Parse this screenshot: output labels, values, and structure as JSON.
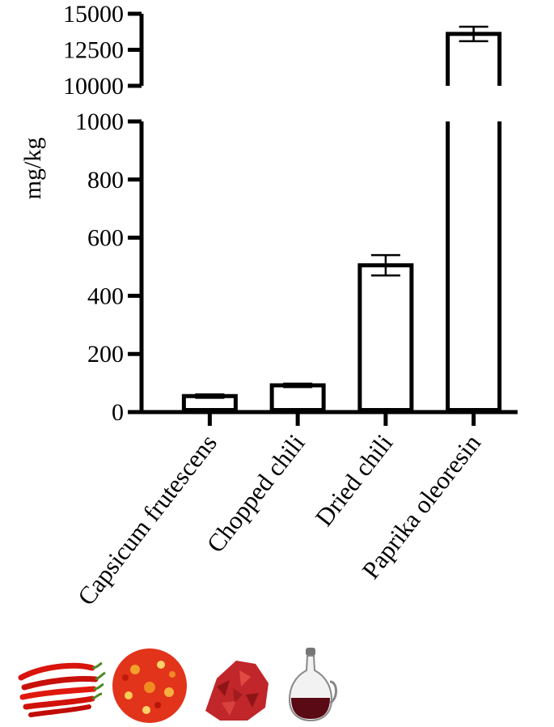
{
  "chart_data": {
    "type": "bar",
    "categories": [
      "Capsicum frutescens",
      "Chopped chili",
      "Dried chili",
      "Paprika oleoresin"
    ],
    "values": [
      55,
      92,
      505,
      13600
    ],
    "error": [
      6,
      6,
      35,
      500
    ],
    "ylabel": "mg/kg",
    "xlabel": "",
    "title": "",
    "axis_break": {
      "lower_range": [
        0,
        1000
      ],
      "upper_range": [
        10000,
        15000
      ],
      "lower_ticks": [
        0,
        200,
        400,
        600,
        800,
        1000
      ],
      "upper_ticks": [
        10000,
        12500,
        15000
      ]
    },
    "grid": false,
    "legend": "none",
    "colors": {
      "bar_fill": "#ffffff",
      "bar_stroke": "#000000"
    },
    "category_icons": [
      "red-chili-peppers-icon",
      "chopped-chili-icon",
      "dried-chili-icon",
      "oleoresin-bottle-icon"
    ]
  }
}
